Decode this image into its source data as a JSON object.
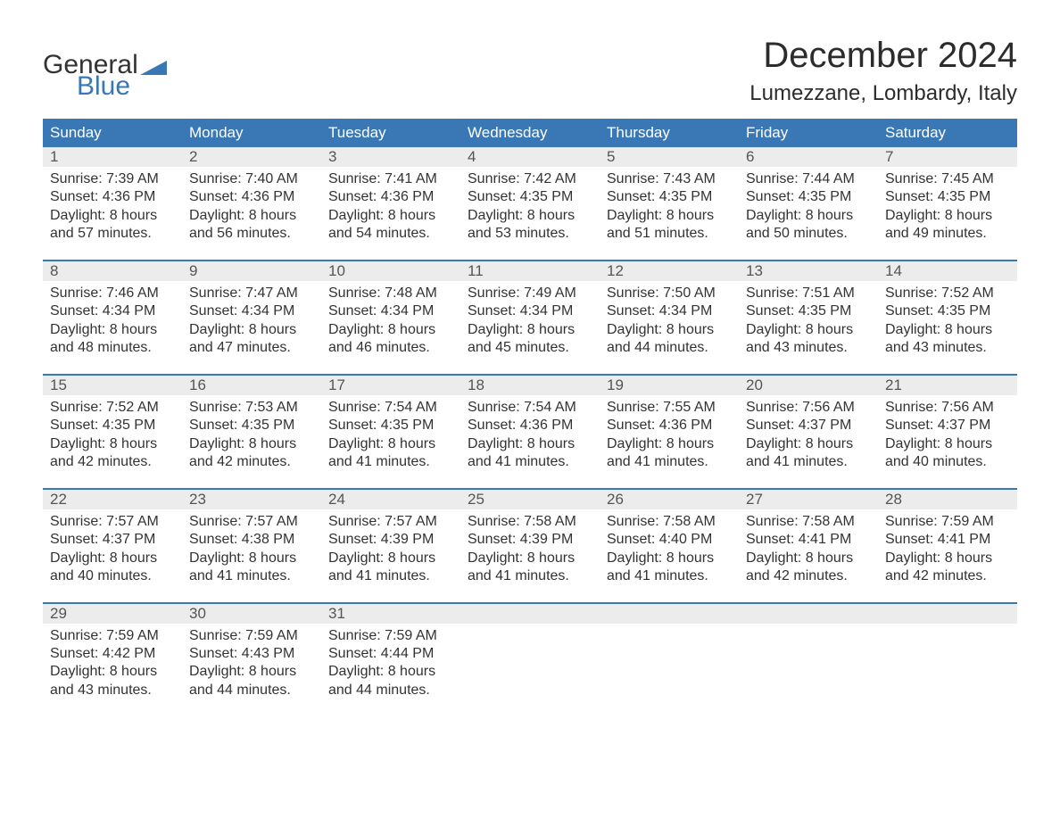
{
  "logo": {
    "word1": "General",
    "word2": "Blue",
    "color_text": "#333333",
    "color_blue": "#3a78b5"
  },
  "title": "December 2024",
  "subtitle": "Lumezzane, Lombardy, Italy",
  "colors": {
    "header_bg": "#3a78b5",
    "header_text": "#ffffff",
    "daynum_bg": "#ececec",
    "daynum_text": "#555555",
    "body_text": "#333333",
    "week_border": "#3a78b5",
    "page_bg": "#ffffff"
  },
  "fonts": {
    "title_size": 40,
    "subtitle_size": 24,
    "header_size": 17,
    "daynum_size": 17,
    "cell_size": 16
  },
  "weekdays": [
    "Sunday",
    "Monday",
    "Tuesday",
    "Wednesday",
    "Thursday",
    "Friday",
    "Saturday"
  ],
  "weeks": [
    {
      "days": [
        {
          "num": "1",
          "sunrise": "Sunrise: 7:39 AM",
          "sunset": "Sunset: 4:36 PM",
          "day1": "Daylight: 8 hours",
          "day2": "and 57 minutes."
        },
        {
          "num": "2",
          "sunrise": "Sunrise: 7:40 AM",
          "sunset": "Sunset: 4:36 PM",
          "day1": "Daylight: 8 hours",
          "day2": "and 56 minutes."
        },
        {
          "num": "3",
          "sunrise": "Sunrise: 7:41 AM",
          "sunset": "Sunset: 4:36 PM",
          "day1": "Daylight: 8 hours",
          "day2": "and 54 minutes."
        },
        {
          "num": "4",
          "sunrise": "Sunrise: 7:42 AM",
          "sunset": "Sunset: 4:35 PM",
          "day1": "Daylight: 8 hours",
          "day2": "and 53 minutes."
        },
        {
          "num": "5",
          "sunrise": "Sunrise: 7:43 AM",
          "sunset": "Sunset: 4:35 PM",
          "day1": "Daylight: 8 hours",
          "day2": "and 51 minutes."
        },
        {
          "num": "6",
          "sunrise": "Sunrise: 7:44 AM",
          "sunset": "Sunset: 4:35 PM",
          "day1": "Daylight: 8 hours",
          "day2": "and 50 minutes."
        },
        {
          "num": "7",
          "sunrise": "Sunrise: 7:45 AM",
          "sunset": "Sunset: 4:35 PM",
          "day1": "Daylight: 8 hours",
          "day2": "and 49 minutes."
        }
      ]
    },
    {
      "days": [
        {
          "num": "8",
          "sunrise": "Sunrise: 7:46 AM",
          "sunset": "Sunset: 4:34 PM",
          "day1": "Daylight: 8 hours",
          "day2": "and 48 minutes."
        },
        {
          "num": "9",
          "sunrise": "Sunrise: 7:47 AM",
          "sunset": "Sunset: 4:34 PM",
          "day1": "Daylight: 8 hours",
          "day2": "and 47 minutes."
        },
        {
          "num": "10",
          "sunrise": "Sunrise: 7:48 AM",
          "sunset": "Sunset: 4:34 PM",
          "day1": "Daylight: 8 hours",
          "day2": "and 46 minutes."
        },
        {
          "num": "11",
          "sunrise": "Sunrise: 7:49 AM",
          "sunset": "Sunset: 4:34 PM",
          "day1": "Daylight: 8 hours",
          "day2": "and 45 minutes."
        },
        {
          "num": "12",
          "sunrise": "Sunrise: 7:50 AM",
          "sunset": "Sunset: 4:34 PM",
          "day1": "Daylight: 8 hours",
          "day2": "and 44 minutes."
        },
        {
          "num": "13",
          "sunrise": "Sunrise: 7:51 AM",
          "sunset": "Sunset: 4:35 PM",
          "day1": "Daylight: 8 hours",
          "day2": "and 43 minutes."
        },
        {
          "num": "14",
          "sunrise": "Sunrise: 7:52 AM",
          "sunset": "Sunset: 4:35 PM",
          "day1": "Daylight: 8 hours",
          "day2": "and 43 minutes."
        }
      ]
    },
    {
      "days": [
        {
          "num": "15",
          "sunrise": "Sunrise: 7:52 AM",
          "sunset": "Sunset: 4:35 PM",
          "day1": "Daylight: 8 hours",
          "day2": "and 42 minutes."
        },
        {
          "num": "16",
          "sunrise": "Sunrise: 7:53 AM",
          "sunset": "Sunset: 4:35 PM",
          "day1": "Daylight: 8 hours",
          "day2": "and 42 minutes."
        },
        {
          "num": "17",
          "sunrise": "Sunrise: 7:54 AM",
          "sunset": "Sunset: 4:35 PM",
          "day1": "Daylight: 8 hours",
          "day2": "and 41 minutes."
        },
        {
          "num": "18",
          "sunrise": "Sunrise: 7:54 AM",
          "sunset": "Sunset: 4:36 PM",
          "day1": "Daylight: 8 hours",
          "day2": "and 41 minutes."
        },
        {
          "num": "19",
          "sunrise": "Sunrise: 7:55 AM",
          "sunset": "Sunset: 4:36 PM",
          "day1": "Daylight: 8 hours",
          "day2": "and 41 minutes."
        },
        {
          "num": "20",
          "sunrise": "Sunrise: 7:56 AM",
          "sunset": "Sunset: 4:37 PM",
          "day1": "Daylight: 8 hours",
          "day2": "and 41 minutes."
        },
        {
          "num": "21",
          "sunrise": "Sunrise: 7:56 AM",
          "sunset": "Sunset: 4:37 PM",
          "day1": "Daylight: 8 hours",
          "day2": "and 40 minutes."
        }
      ]
    },
    {
      "days": [
        {
          "num": "22",
          "sunrise": "Sunrise: 7:57 AM",
          "sunset": "Sunset: 4:37 PM",
          "day1": "Daylight: 8 hours",
          "day2": "and 40 minutes."
        },
        {
          "num": "23",
          "sunrise": "Sunrise: 7:57 AM",
          "sunset": "Sunset: 4:38 PM",
          "day1": "Daylight: 8 hours",
          "day2": "and 41 minutes."
        },
        {
          "num": "24",
          "sunrise": "Sunrise: 7:57 AM",
          "sunset": "Sunset: 4:39 PM",
          "day1": "Daylight: 8 hours",
          "day2": "and 41 minutes."
        },
        {
          "num": "25",
          "sunrise": "Sunrise: 7:58 AM",
          "sunset": "Sunset: 4:39 PM",
          "day1": "Daylight: 8 hours",
          "day2": "and 41 minutes."
        },
        {
          "num": "26",
          "sunrise": "Sunrise: 7:58 AM",
          "sunset": "Sunset: 4:40 PM",
          "day1": "Daylight: 8 hours",
          "day2": "and 41 minutes."
        },
        {
          "num": "27",
          "sunrise": "Sunrise: 7:58 AM",
          "sunset": "Sunset: 4:41 PM",
          "day1": "Daylight: 8 hours",
          "day2": "and 42 minutes."
        },
        {
          "num": "28",
          "sunrise": "Sunrise: 7:59 AM",
          "sunset": "Sunset: 4:41 PM",
          "day1": "Daylight: 8 hours",
          "day2": "and 42 minutes."
        }
      ]
    },
    {
      "days": [
        {
          "num": "29",
          "sunrise": "Sunrise: 7:59 AM",
          "sunset": "Sunset: 4:42 PM",
          "day1": "Daylight: 8 hours",
          "day2": "and 43 minutes."
        },
        {
          "num": "30",
          "sunrise": "Sunrise: 7:59 AM",
          "sunset": "Sunset: 4:43 PM",
          "day1": "Daylight: 8 hours",
          "day2": "and 44 minutes."
        },
        {
          "num": "31",
          "sunrise": "Sunrise: 7:59 AM",
          "sunset": "Sunset: 4:44 PM",
          "day1": "Daylight: 8 hours",
          "day2": "and 44 minutes."
        },
        {
          "empty": true
        },
        {
          "empty": true
        },
        {
          "empty": true
        },
        {
          "empty": true
        }
      ]
    }
  ]
}
